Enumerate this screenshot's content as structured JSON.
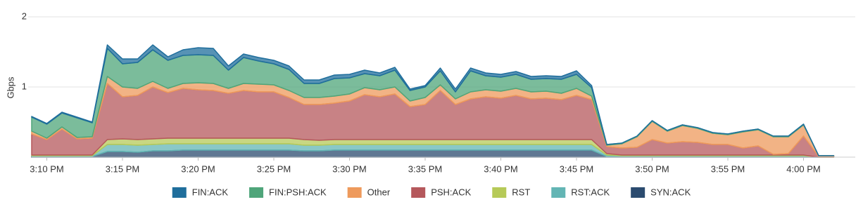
{
  "chart_data": {
    "type": "stacked_area",
    "y_label": "Gbps",
    "ylim": [
      0,
      2
    ],
    "yticks": [
      1,
      2
    ],
    "grid": true,
    "categories": [
      null,
      "3:10 PM",
      null,
      null,
      null,
      null,
      "3:15 PM",
      null,
      null,
      null,
      null,
      "3:20 PM",
      null,
      null,
      null,
      null,
      "3:25 PM",
      null,
      null,
      null,
      null,
      "3:30 PM",
      null,
      null,
      null,
      null,
      "3:35 PM",
      null,
      null,
      null,
      null,
      "3:40 PM",
      null,
      null,
      null,
      null,
      "3:45 PM",
      null,
      null,
      null,
      null,
      "3:50 PM",
      null,
      null,
      null,
      null,
      "3:55 PM",
      null,
      null,
      null,
      null,
      "4:00 PM",
      null,
      null
    ],
    "legend": "bottom",
    "series": [
      {
        "name": "FIN:ACK",
        "color": "#1f6e9c",
        "values": [
          0.01,
          0.01,
          0.01,
          0.01,
          0.01,
          0.05,
          0.07,
          0.05,
          0.07,
          0.05,
          0.08,
          0.1,
          0.1,
          0.06,
          0.05,
          0.05,
          0.05,
          0.05,
          0.05,
          0.05,
          0.05,
          0.05,
          0.05,
          0.04,
          0.04,
          0.02,
          0.02,
          0.04,
          0.04,
          0.04,
          0.04,
          0.04,
          0.04,
          0.04,
          0.04,
          0.04,
          0.05,
          0.03,
          0,
          0,
          0,
          0,
          0,
          0,
          0,
          0,
          0,
          0,
          0,
          0,
          0,
          0,
          0,
          0
        ]
      },
      {
        "name": "FIN:PSH:ACK",
        "color": "#4fa57a",
        "values": [
          0.2,
          0.2,
          0.2,
          0.28,
          0.2,
          0.4,
          0.33,
          0.37,
          0.45,
          0.4,
          0.4,
          0.4,
          0.4,
          0.26,
          0.37,
          0.33,
          0.3,
          0.3,
          0.2,
          0.2,
          0.25,
          0.23,
          0.2,
          0.2,
          0.24,
          0.15,
          0.15,
          0.2,
          0.1,
          0.3,
          0.2,
          0.2,
          0.2,
          0.18,
          0.18,
          0.2,
          0.2,
          0.12,
          0.01,
          0.01,
          0.01,
          0.01,
          0.01,
          0.01,
          0.01,
          0.01,
          0.01,
          0.01,
          0.01,
          0.01,
          0.01,
          0.01,
          0,
          0
        ]
      },
      {
        "name": "Other",
        "color": "#ee9a5c",
        "values": [
          0.04,
          0.02,
          0.03,
          0.02,
          0.02,
          0.1,
          0.14,
          0.1,
          0.08,
          0.06,
          0.07,
          0.1,
          0.1,
          0.07,
          0.1,
          0.11,
          0.1,
          0.1,
          0.1,
          0.1,
          0.1,
          0.1,
          0.1,
          0.1,
          0.1,
          0.08,
          0.1,
          0.08,
          0.08,
          0.1,
          0.1,
          0.1,
          0.1,
          0.1,
          0.1,
          0.09,
          0.1,
          0.05,
          0.02,
          0.06,
          0.15,
          0.26,
          0.17,
          0.23,
          0.2,
          0.16,
          0.14,
          0.23,
          0.23,
          0.25,
          0.24,
          0.16,
          0.01,
          0.01
        ]
      },
      {
        "name": "PSH:ACK",
        "color": "#b5585c",
        "values": [
          0.3,
          0.22,
          0.37,
          0.23,
          0.24,
          0.8,
          0.6,
          0.63,
          0.74,
          0.65,
          0.71,
          0.69,
          0.68,
          0.64,
          0.68,
          0.66,
          0.66,
          0.58,
          0.5,
          0.51,
          0.52,
          0.55,
          0.64,
          0.61,
          0.65,
          0.47,
          0.5,
          0.7,
          0.5,
          0.58,
          0.61,
          0.59,
          0.63,
          0.58,
          0.59,
          0.57,
          0.63,
          0.57,
          0.1,
          0.1,
          0.11,
          0.22,
          0.17,
          0.19,
          0.18,
          0.15,
          0.15,
          0.1,
          0.13,
          0.01,
          0.02,
          0.27,
          0.01,
          0.01
        ]
      },
      {
        "name": "RST",
        "color": "#b6ca58",
        "values": [
          0.01,
          0.01,
          0.01,
          0.01,
          0.01,
          0.07,
          0.08,
          0.08,
          0.08,
          0.08,
          0.08,
          0.08,
          0.08,
          0.08,
          0.08,
          0.08,
          0.08,
          0.08,
          0.08,
          0.07,
          0.07,
          0.07,
          0.07,
          0.07,
          0.07,
          0.07,
          0.07,
          0.07,
          0.07,
          0.07,
          0.07,
          0.07,
          0.07,
          0.07,
          0.07,
          0.07,
          0.07,
          0.07,
          0.02,
          0.01,
          0.01,
          0.01,
          0.01,
          0.01,
          0.01,
          0.01,
          0.01,
          0.01,
          0.01,
          0.01,
          0.01,
          0.01,
          0,
          0
        ]
      },
      {
        "name": "RST:ACK",
        "color": "#63b5b4",
        "values": [
          0.01,
          0.01,
          0.01,
          0.01,
          0.01,
          0.1,
          0.1,
          0.1,
          0.09,
          0.1,
          0.09,
          0.09,
          0.09,
          0.09,
          0.09,
          0.09,
          0.09,
          0.09,
          0.08,
          0.08,
          0.08,
          0.08,
          0.08,
          0.08,
          0.08,
          0.08,
          0.08,
          0.08,
          0.08,
          0.08,
          0.08,
          0.08,
          0.08,
          0.08,
          0.08,
          0.08,
          0.08,
          0.08,
          0.02,
          0.01,
          0.01,
          0.01,
          0.01,
          0.01,
          0.01,
          0.01,
          0.01,
          0.01,
          0.01,
          0.01,
          0.01,
          0.01,
          0,
          0
        ]
      },
      {
        "name": "SYN:ACK",
        "color": "#2b4b6f",
        "values": [
          0.01,
          0.01,
          0.01,
          0.01,
          0.01,
          0.08,
          0.08,
          0.07,
          0.09,
          0.09,
          0.1,
          0.1,
          0.1,
          0.1,
          0.1,
          0.1,
          0.1,
          0.1,
          0.09,
          0.09,
          0.1,
          0.1,
          0.1,
          0.1,
          0.1,
          0.1,
          0.1,
          0.1,
          0.1,
          0.1,
          0.1,
          0.1,
          0.1,
          0.1,
          0.1,
          0.1,
          0.1,
          0.1,
          0.01,
          0.01,
          0.01,
          0.01,
          0.01,
          0.01,
          0.01,
          0.01,
          0.01,
          0.01,
          0.01,
          0.01,
          0.01,
          0.01,
          0,
          0
        ]
      }
    ]
  }
}
